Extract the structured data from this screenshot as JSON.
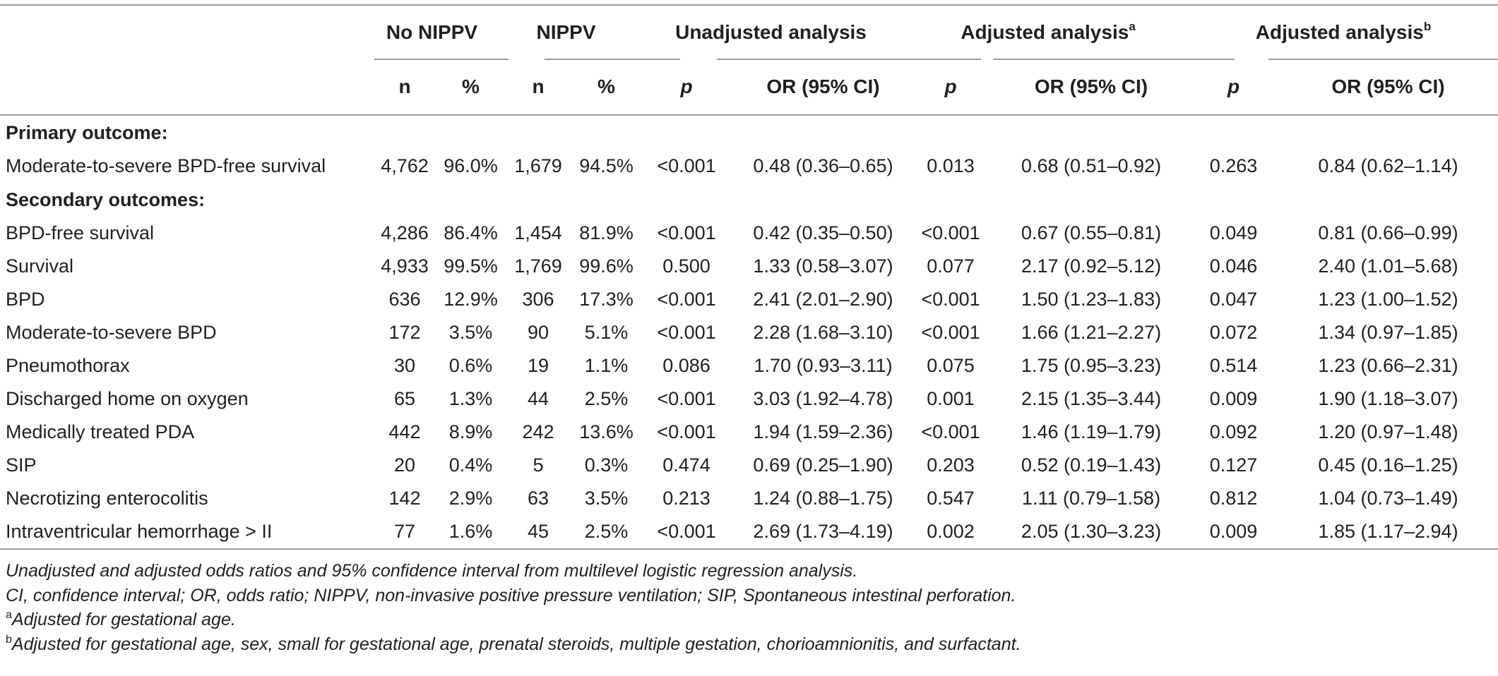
{
  "header": {
    "groups": [
      {
        "label": "No NIPPV",
        "sup": ""
      },
      {
        "label": "NIPPV",
        "sup": ""
      },
      {
        "label": "Unadjusted analysis",
        "sup": ""
      },
      {
        "label": "Adjusted analysis",
        "sup": "a"
      },
      {
        "label": "Adjusted analysis",
        "sup": "b"
      }
    ],
    "subcols": [
      "n",
      "%",
      "n",
      "%",
      "p",
      "OR (95% CI)",
      "p",
      "OR (95% CI)",
      "p",
      "OR (95% CI)"
    ]
  },
  "sections": [
    {
      "title": "Primary outcome:",
      "rows": [
        {
          "label": "Moderate-to-severe BPD-free survival",
          "cells": [
            "4,762",
            "96.0%",
            "1,679",
            "94.5%",
            "<0.001",
            "0.48 (0.36–0.65)",
            "0.013",
            "0.68 (0.51–0.92)",
            "0.263",
            "0.84 (0.62–1.14)"
          ]
        }
      ]
    },
    {
      "title": "Secondary outcomes:",
      "rows": [
        {
          "label": "BPD-free survival",
          "cells": [
            "4,286",
            "86.4%",
            "1,454",
            "81.9%",
            "<0.001",
            "0.42 (0.35–0.50)",
            "<0.001",
            "0.67 (0.55–0.81)",
            "0.049",
            "0.81 (0.66–0.99)"
          ]
        },
        {
          "label": "Survival",
          "cells": [
            "4,933",
            "99.5%",
            "1,769",
            "99.6%",
            "0.500",
            "1.33 (0.58–3.07)",
            "0.077",
            "2.17 (0.92–5.12)",
            "0.046",
            "2.40 (1.01–5.68)"
          ]
        },
        {
          "label": "BPD",
          "cells": [
            "636",
            "12.9%",
            "306",
            "17.3%",
            "<0.001",
            "2.41 (2.01–2.90)",
            "<0.001",
            "1.50 (1.23–1.83)",
            "0.047",
            "1.23 (1.00–1.52)"
          ]
        },
        {
          "label": "Moderate-to-severe BPD",
          "cells": [
            "172",
            "3.5%",
            "90",
            "5.1%",
            "<0.001",
            "2.28 (1.68–3.10)",
            "<0.001",
            "1.66 (1.21–2.27)",
            "0.072",
            "1.34 (0.97–1.85)"
          ]
        },
        {
          "label": "Pneumothorax",
          "cells": [
            "30",
            "0.6%",
            "19",
            "1.1%",
            "0.086",
            "1.70 (0.93–3.11)",
            "0.075",
            "1.75 (0.95–3.23)",
            "0.514",
            "1.23 (0.66–2.31)"
          ]
        },
        {
          "label": "Discharged home on oxygen",
          "cells": [
            "65",
            "1.3%",
            "44",
            "2.5%",
            "<0.001",
            "3.03 (1.92–4.78)",
            "0.001",
            "2.15 (1.35–3.44)",
            "0.009",
            "1.90 (1.18–3.07)"
          ]
        },
        {
          "label": "Medically treated PDA",
          "cells": [
            "442",
            "8.9%",
            "242",
            "13.6%",
            "<0.001",
            "1.94 (1.59–2.36)",
            "<0.001",
            "1.46 (1.19–1.79)",
            "0.092",
            "1.20 (0.97–1.48)"
          ]
        },
        {
          "label": "SIP",
          "cells": [
            "20",
            "0.4%",
            "5",
            "0.3%",
            "0.474",
            "0.69 (0.25–1.90)",
            "0.203",
            "0.52 (0.19–1.43)",
            "0.127",
            "0.45 (0.16–1.25)"
          ]
        },
        {
          "label": "Necrotizing enterocolitis",
          "cells": [
            "142",
            "2.9%",
            "63",
            "3.5%",
            "0.213",
            "1.24 (0.88–1.75)",
            "0.547",
            "1.11 (0.79–1.58)",
            "0.812",
            "1.04 (0.73–1.49)"
          ]
        },
        {
          "label": "Intraventricular hemorrhage > II",
          "cells": [
            "77",
            "1.6%",
            "45",
            "2.5%",
            "<0.001",
            "2.69 (1.73–4.19)",
            "0.002",
            "2.05 (1.30–3.23)",
            "0.009",
            "1.85 (1.17–2.94)"
          ]
        }
      ]
    }
  ],
  "footnotes": {
    "line1": "Unadjusted and adjusted odds ratios and 95% confidence interval from multilevel logistic regression analysis.",
    "line2": "CI, confidence interval; OR, odds ratio; NIPPV, non-invasive positive pressure ventilation; SIP, Spontaneous intestinal perforation.",
    "a_mark": "a",
    "a_text": "Adjusted for gestational age.",
    "b_mark": "b",
    "b_text": "Adjusted for gestational age, sex, small for gestational age, prenatal steroids, multiple gestation, chorioamnionitis, and surfactant."
  }
}
